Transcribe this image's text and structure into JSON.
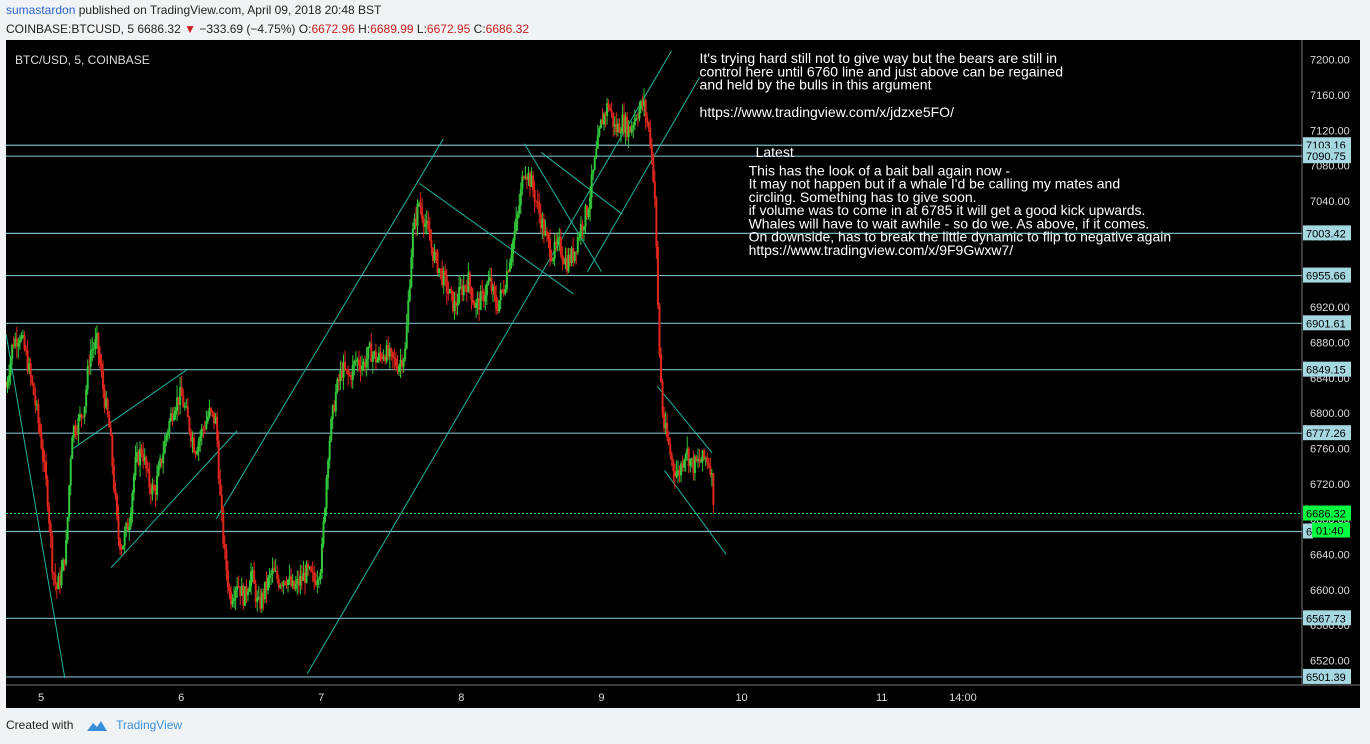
{
  "header": {
    "author": "sumastardon",
    "published_text": "published on TradingView.com, April 09, 2018 20:48 BST",
    "symbol": "COINBASE:BTCUSD, 5",
    "last": "6686.32",
    "change_icon": "down-triangle-icon",
    "change": "−333.69 (−4.75%)",
    "o_label": "O:",
    "o": "6672.96",
    "h_label": "H:",
    "h": "6689.99",
    "l_label": "L:",
    "l": "6672.95",
    "c_label": "C:",
    "c": "6686.32"
  },
  "footer": {
    "created_with": "Created with",
    "brand": "TradingView",
    "logo_icon": "tradingview-logo-icon"
  },
  "chart_data": {
    "type": "candlestick",
    "symbol_label": "BTC/USD, 5, COINBASE",
    "ylim": [
      6490,
      7220
    ],
    "y_ticks": [
      "6520.00",
      "6560.00",
      "6600.00",
      "6640.00",
      "6680.00",
      "6720.00",
      "6760.00",
      "6800.00",
      "6840.00",
      "6880.00",
      "6920.00",
      "6960.00",
      "7000.00",
      "7040.00",
      "7080.00",
      "7120.00",
      "7160.00",
      "7200.00"
    ],
    "x_ticks": [
      {
        "label": "5",
        "t": 0.25
      },
      {
        "label": "6",
        "t": 1.25
      },
      {
        "label": "7",
        "t": 2.25
      },
      {
        "label": "8",
        "t": 3.25
      },
      {
        "label": "9",
        "t": 4.25
      },
      {
        "label": "10",
        "t": 5.25
      },
      {
        "label": "11",
        "t": 6.25
      },
      {
        "label": "14:00",
        "t": 6.83
      }
    ],
    "xlim": [
      0,
      9.25
    ],
    "horizontal_levels": [
      {
        "value": 7103.16,
        "label": "7103.16"
      },
      {
        "value": 7090.75,
        "label": "7090.75"
      },
      {
        "value": 7003.42,
        "label": "7003.42"
      },
      {
        "value": 6955.66,
        "label": "6955.66"
      },
      {
        "value": 6901.61,
        "label": "6901.61"
      },
      {
        "value": 6849.15,
        "label": "6849.15"
      },
      {
        "value": 6777.26,
        "label": "6777.26"
      },
      {
        "value": 6666.0,
        "label": "6"
      },
      {
        "value": 6567.73,
        "label": "6567.73"
      },
      {
        "value": 6501.39,
        "label": "6501.39"
      }
    ],
    "last_price": {
      "value": 6686.32,
      "label": "6686.32",
      "countdown": "01:40"
    },
    "trend_lines": [
      {
        "t1": 0.0,
        "p1": 6890,
        "t2": 0.42,
        "p2": 6500
      },
      {
        "t1": 0.48,
        "p1": 6760,
        "t2": 1.3,
        "p2": 6850
      },
      {
        "t1": 0.75,
        "p1": 6625,
        "t2": 1.65,
        "p2": 6780
      },
      {
        "t1": 1.5,
        "p1": 6680,
        "t2": 3.12,
        "p2": 7110
      },
      {
        "t1": 2.15,
        "p1": 6505,
        "t2": 4.75,
        "p2": 7210
      },
      {
        "t1": 2.95,
        "p1": 7060,
        "t2": 4.05,
        "p2": 6935
      },
      {
        "t1": 3.7,
        "p1": 7105,
        "t2": 4.25,
        "p2": 6960
      },
      {
        "t1": 3.82,
        "p1": 7095,
        "t2": 4.4,
        "p2": 7025
      },
      {
        "t1": 4.15,
        "p1": 6960,
        "t2": 4.95,
        "p2": 7180
      },
      {
        "t1": 4.65,
        "p1": 6830,
        "t2": 5.04,
        "p2": 6755
      },
      {
        "t1": 4.7,
        "p1": 6735,
        "t2": 5.14,
        "p2": 6640
      }
    ],
    "path": [
      [
        0.0,
        6830
      ],
      [
        0.05,
        6880
      ],
      [
        0.1,
        6890
      ],
      [
        0.15,
        6860
      ],
      [
        0.2,
        6820
      ],
      [
        0.25,
        6770
      ],
      [
        0.3,
        6700
      ],
      [
        0.33,
        6630
      ],
      [
        0.36,
        6600
      ],
      [
        0.4,
        6620
      ],
      [
        0.43,
        6650
      ],
      [
        0.47,
        6780
      ],
      [
        0.52,
        6790
      ],
      [
        0.56,
        6810
      ],
      [
        0.6,
        6870
      ],
      [
        0.65,
        6880
      ],
      [
        0.7,
        6820
      ],
      [
        0.74,
        6780
      ],
      [
        0.78,
        6700
      ],
      [
        0.8,
        6660
      ],
      [
        0.83,
        6650
      ],
      [
        0.88,
        6680
      ],
      [
        0.92,
        6740
      ],
      [
        0.97,
        6760
      ],
      [
        1.02,
        6720
      ],
      [
        1.06,
        6710
      ],
      [
        1.1,
        6740
      ],
      [
        1.15,
        6780
      ],
      [
        1.2,
        6810
      ],
      [
        1.25,
        6820
      ],
      [
        1.3,
        6790
      ],
      [
        1.35,
        6760
      ],
      [
        1.4,
        6780
      ],
      [
        1.45,
        6800
      ],
      [
        1.5,
        6790
      ],
      [
        1.53,
        6700
      ],
      [
        1.56,
        6640
      ],
      [
        1.6,
        6590
      ],
      [
        1.65,
        6610
      ],
      [
        1.7,
        6590
      ],
      [
        1.75,
        6620
      ],
      [
        1.8,
        6580
      ],
      [
        1.85,
        6600
      ],
      [
        1.9,
        6620
      ],
      [
        1.95,
        6610
      ],
      [
        2.0,
        6615
      ],
      [
        2.05,
        6600
      ],
      [
        2.1,
        6610
      ],
      [
        2.15,
        6620
      ],
      [
        2.2,
        6610
      ],
      [
        2.25,
        6630
      ],
      [
        2.3,
        6760
      ],
      [
        2.35,
        6820
      ],
      [
        2.4,
        6850
      ],
      [
        2.45,
        6840
      ],
      [
        2.5,
        6860
      ],
      [
        2.55,
        6855
      ],
      [
        2.6,
        6870
      ],
      [
        2.65,
        6860
      ],
      [
        2.7,
        6870
      ],
      [
        2.75,
        6860
      ],
      [
        2.8,
        6855
      ],
      [
        2.85,
        6870
      ],
      [
        2.9,
        7000
      ],
      [
        2.95,
        7040
      ],
      [
        3.0,
        7010
      ],
      [
        3.05,
        6980
      ],
      [
        3.1,
        6960
      ],
      [
        3.15,
        6940
      ],
      [
        3.2,
        6920
      ],
      [
        3.25,
        6940
      ],
      [
        3.3,
        6950
      ],
      [
        3.35,
        6920
      ],
      [
        3.4,
        6930
      ],
      [
        3.45,
        6950
      ],
      [
        3.5,
        6920
      ],
      [
        3.55,
        6940
      ],
      [
        3.6,
        6980
      ],
      [
        3.65,
        7020
      ],
      [
        3.7,
        7080
      ],
      [
        3.75,
        7060
      ],
      [
        3.8,
        7030
      ],
      [
        3.85,
        7000
      ],
      [
        3.9,
        6980
      ],
      [
        3.95,
        6990
      ],
      [
        4.0,
        6970
      ],
      [
        4.05,
        6980
      ],
      [
        4.1,
        7010
      ],
      [
        4.15,
        7030
      ],
      [
        4.2,
        7080
      ],
      [
        4.25,
        7130
      ],
      [
        4.3,
        7150
      ],
      [
        4.35,
        7120
      ],
      [
        4.4,
        7130
      ],
      [
        4.45,
        7120
      ],
      [
        4.5,
        7140
      ],
      [
        4.55,
        7150
      ],
      [
        4.6,
        7110
      ],
      [
        4.63,
        7050
      ],
      [
        4.66,
        6880
      ],
      [
        4.69,
        6790
      ],
      [
        4.72,
        6770
      ],
      [
        4.76,
        6740
      ],
      [
        4.8,
        6730
      ],
      [
        4.85,
        6760
      ],
      [
        4.9,
        6740
      ],
      [
        4.95,
        6745
      ],
      [
        5.0,
        6750
      ],
      [
        5.03,
        6740
      ],
      [
        5.06,
        6686
      ]
    ],
    "annotations": [
      {
        "text": "It's trying hard still not to give way but the bears are still in",
        "t": 4.95,
        "p": 7196
      },
      {
        "text": "control here until 6760 line and just above can be regained",
        "t": 4.95,
        "p": 7181
      },
      {
        "text": "and held by the bulls in this argument",
        "t": 4.95,
        "p": 7166
      },
      {
        "text": "https://www.tradingview.com/x/jdzxe5FO/",
        "t": 4.95,
        "p": 7135
      },
      {
        "text": "Latest",
        "t": 5.35,
        "p": 7090
      },
      {
        "text": "This has the look of a bait ball again now -",
        "t": 5.3,
        "p": 7069
      },
      {
        "text": "It may not happen but if a whale I'd be calling my mates and",
        "t": 5.3,
        "p": 7054
      },
      {
        "text": "circling. Something has to give soon.",
        "t": 5.3,
        "p": 7039
      },
      {
        "text": "if volume was to come in at 6785 it will get a good kick upwards.",
        "t": 5.3,
        "p": 7024
      },
      {
        "text": "Whales will have to wait awhile - so do we. As above, if it comes.",
        "t": 5.3,
        "p": 7009
      },
      {
        "text": "On downside, has to break the little dynamic to flip to negative again",
        "t": 5.3,
        "p": 6994
      },
      {
        "text": "https://www.tradingview.com/x/9F9Gwxw7/",
        "t": 5.3,
        "p": 6979
      }
    ],
    "colors": {
      "up": "#34c83c",
      "down": "#e0271d",
      "level": "#7ab6c4",
      "trend": "#22b3a0",
      "last": "#00ff41",
      "bg": "#000000",
      "text": "#ffffff"
    }
  }
}
